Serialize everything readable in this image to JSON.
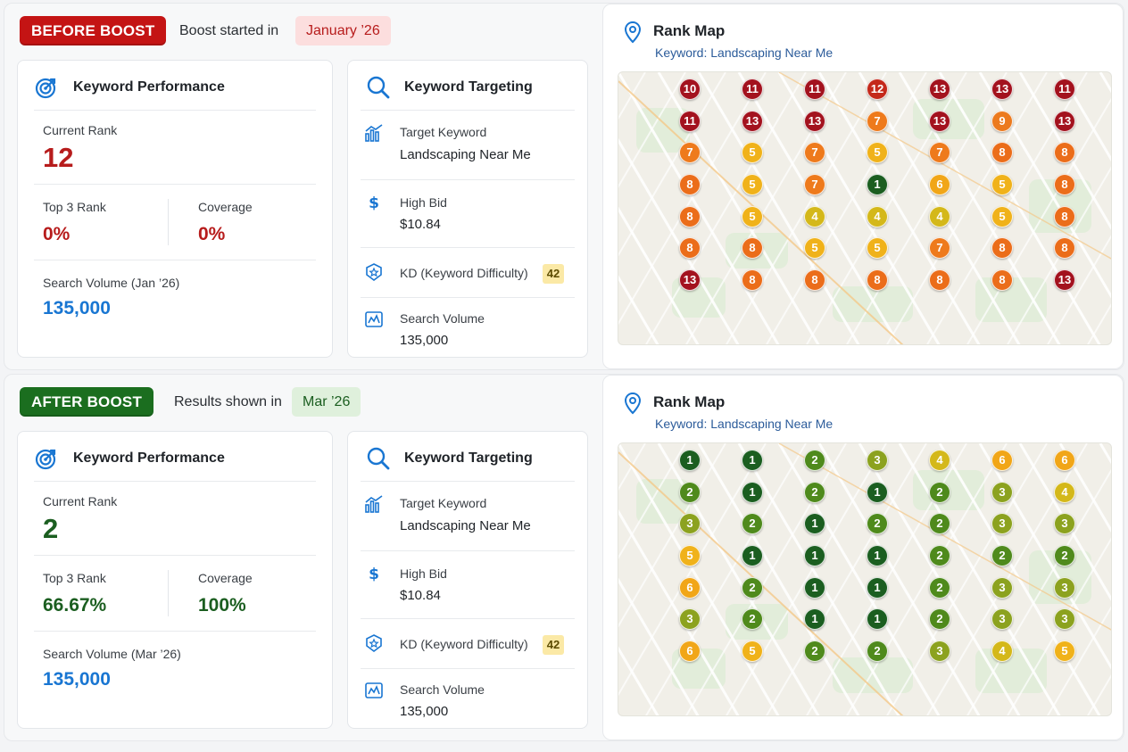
{
  "before": {
    "badge": "BEFORE BOOST",
    "lead": "Boost started in",
    "period": "January ’26",
    "performance": {
      "title": "Keyword Performance",
      "current_rank_label": "Current Rank",
      "current_rank": "12",
      "top3_label": "Top 3 Rank",
      "top3": "0%",
      "coverage_label": "Coverage",
      "coverage": "0%",
      "volume_label": "Search Volume (Jan ’26)",
      "volume": "135,000"
    },
    "targeting": {
      "title": "Keyword Targeting",
      "target_label": "Target Keyword",
      "target_value": "Landscaping Near Me",
      "bid_label": "High Bid",
      "bid_value": "$10.84",
      "kd_label": "KD (Keyword Difficulty)",
      "kd_value": "42",
      "volume_label": "Search Volume",
      "volume_value": "135,000"
    },
    "map": {
      "title": "Rank Map",
      "subtitle": "Keyword: Landscaping Near Me",
      "grid": [
        [
          10,
          11,
          11,
          12,
          13,
          13,
          11
        ],
        [
          11,
          13,
          13,
          7,
          13,
          9,
          13
        ],
        [
          7,
          5,
          7,
          5,
          7,
          8,
          8
        ],
        [
          8,
          5,
          7,
          1,
          6,
          5,
          8
        ],
        [
          8,
          5,
          4,
          4,
          4,
          5,
          8
        ],
        [
          8,
          8,
          5,
          5,
          7,
          8,
          8
        ],
        [
          13,
          8,
          8,
          8,
          8,
          8,
          13
        ]
      ]
    }
  },
  "after": {
    "badge": "AFTER BOOST",
    "lead": "Results shown in",
    "period": "Mar ’26",
    "performance": {
      "title": "Keyword Performance",
      "current_rank_label": "Current Rank",
      "current_rank": "2",
      "top3_label": "Top 3 Rank",
      "top3": "66.67%",
      "coverage_label": "Coverage",
      "coverage": "100%",
      "volume_label": "Search Volume (Mar ’26)",
      "volume": "135,000"
    },
    "targeting": {
      "title": "Keyword Targeting",
      "target_label": "Target Keyword",
      "target_value": "Landscaping Near Me",
      "bid_label": "High Bid",
      "bid_value": "$10.84",
      "kd_label": "KD (Keyword Difficulty)",
      "kd_value": "42",
      "volume_label": "Search Volume",
      "volume_value": "135,000"
    },
    "map": {
      "title": "Rank Map",
      "subtitle": "Keyword: Landscaping Near Me",
      "grid": [
        [
          1,
          1,
          2,
          3,
          4,
          6,
          6
        ],
        [
          2,
          1,
          2,
          1,
          2,
          3,
          4
        ],
        [
          3,
          2,
          1,
          2,
          2,
          3,
          3
        ],
        [
          5,
          1,
          1,
          1,
          2,
          2,
          2
        ],
        [
          6,
          2,
          1,
          1,
          2,
          3,
          3
        ],
        [
          3,
          2,
          1,
          1,
          2,
          3,
          3
        ],
        [
          6,
          5,
          2,
          2,
          3,
          4,
          5
        ]
      ]
    }
  },
  "rank_colors": {
    "1": "#1b5e20",
    "2": "#4f8a1c",
    "3": "#8ca21f",
    "4": "#d4b81a",
    "5": "#f0b21a",
    "6": "#f1a618",
    "7": "#ee7a1c",
    "8": "#eb6d1a",
    "9": "#ec7a1e",
    "10": "#a3121e",
    "11": "#a3121e",
    "12": "#c4281a",
    "13": "#a3121e"
  },
  "icons": {
    "performance": "target-arrow-icon",
    "targeting": "search-icon",
    "target_keyword": "bar-chart-icon",
    "bid": "dollar-icon",
    "kd": "badge-star-icon",
    "volume": "line-chart-icon",
    "map": "map-pin-icon"
  }
}
